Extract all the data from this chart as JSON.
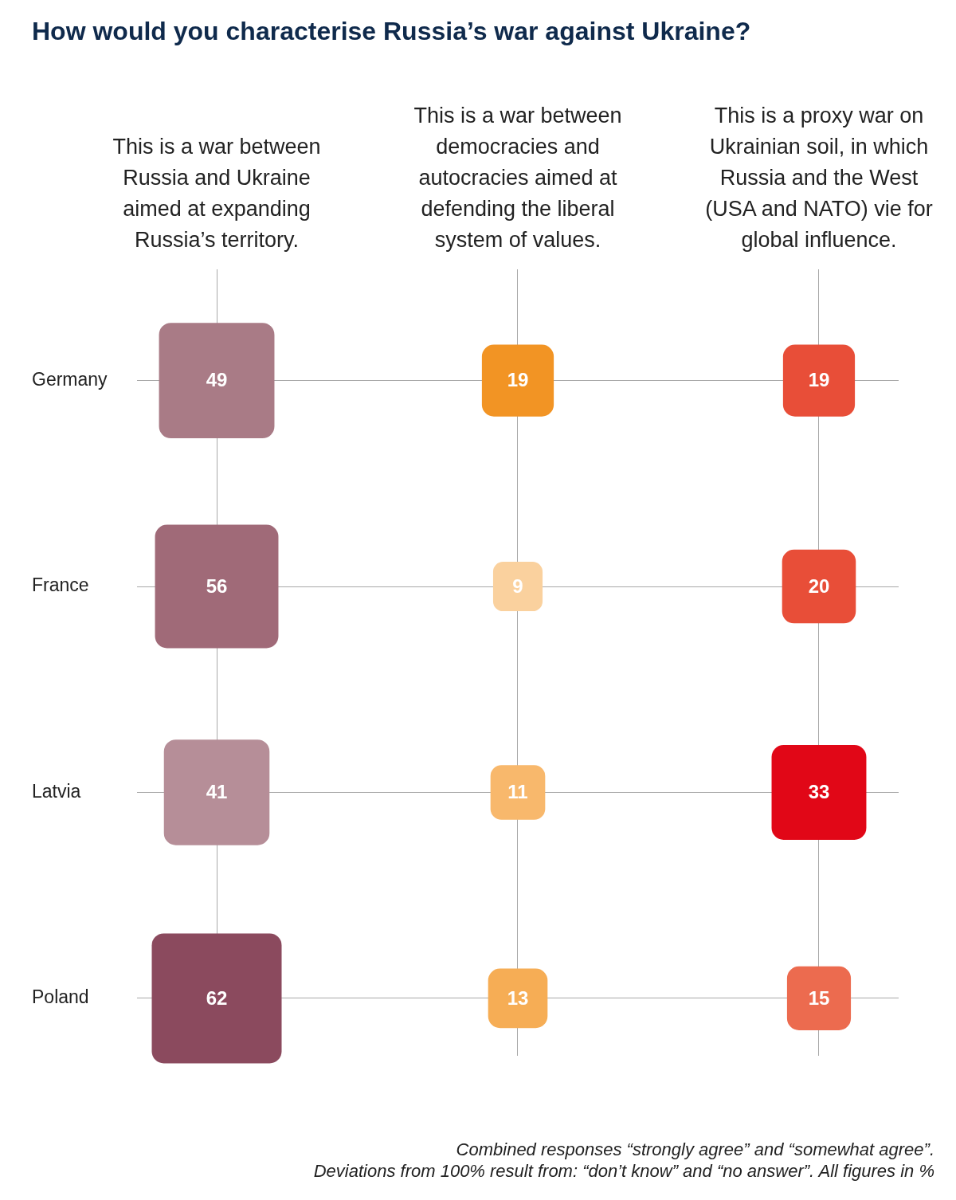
{
  "chart_data": {
    "type": "heatmap",
    "title": "How would you characterise Russia’s war against Ukraine?",
    "categories": [
      "This is a war between Russia and Ukraine aimed at expanding Russia’s territory.",
      "This is a war between democracies and autocracies aimed at defending the liberal system of values.",
      "This is a proxy war on Ukrainian soil, in which Russia and the West (USA and NATO) vie for global influence."
    ],
    "y_categories": [
      "Germany",
      "France",
      "Latvia",
      "Poland"
    ],
    "cells": [
      [
        49,
        19,
        19
      ],
      [
        56,
        9,
        20
      ],
      [
        41,
        11,
        33
      ],
      [
        62,
        13,
        15
      ]
    ],
    "colors": [
      [
        "#a97b86",
        "#f29424",
        "#e84e38"
      ],
      [
        "#a06a78",
        "#fad19e",
        "#e84e38"
      ],
      [
        "#b68e98",
        "#f8b86c",
        "#e10717"
      ],
      [
        "#8b4a5e",
        "#f6ad55",
        "#ec6b4f"
      ]
    ],
    "grid": true,
    "data_labels": true,
    "annotations": [
      "Combined responses “strongly agree” and “somewhat agree”.",
      "Deviations from 100% result from: “don’t know” and “no answer”. All figures in %"
    ]
  }
}
